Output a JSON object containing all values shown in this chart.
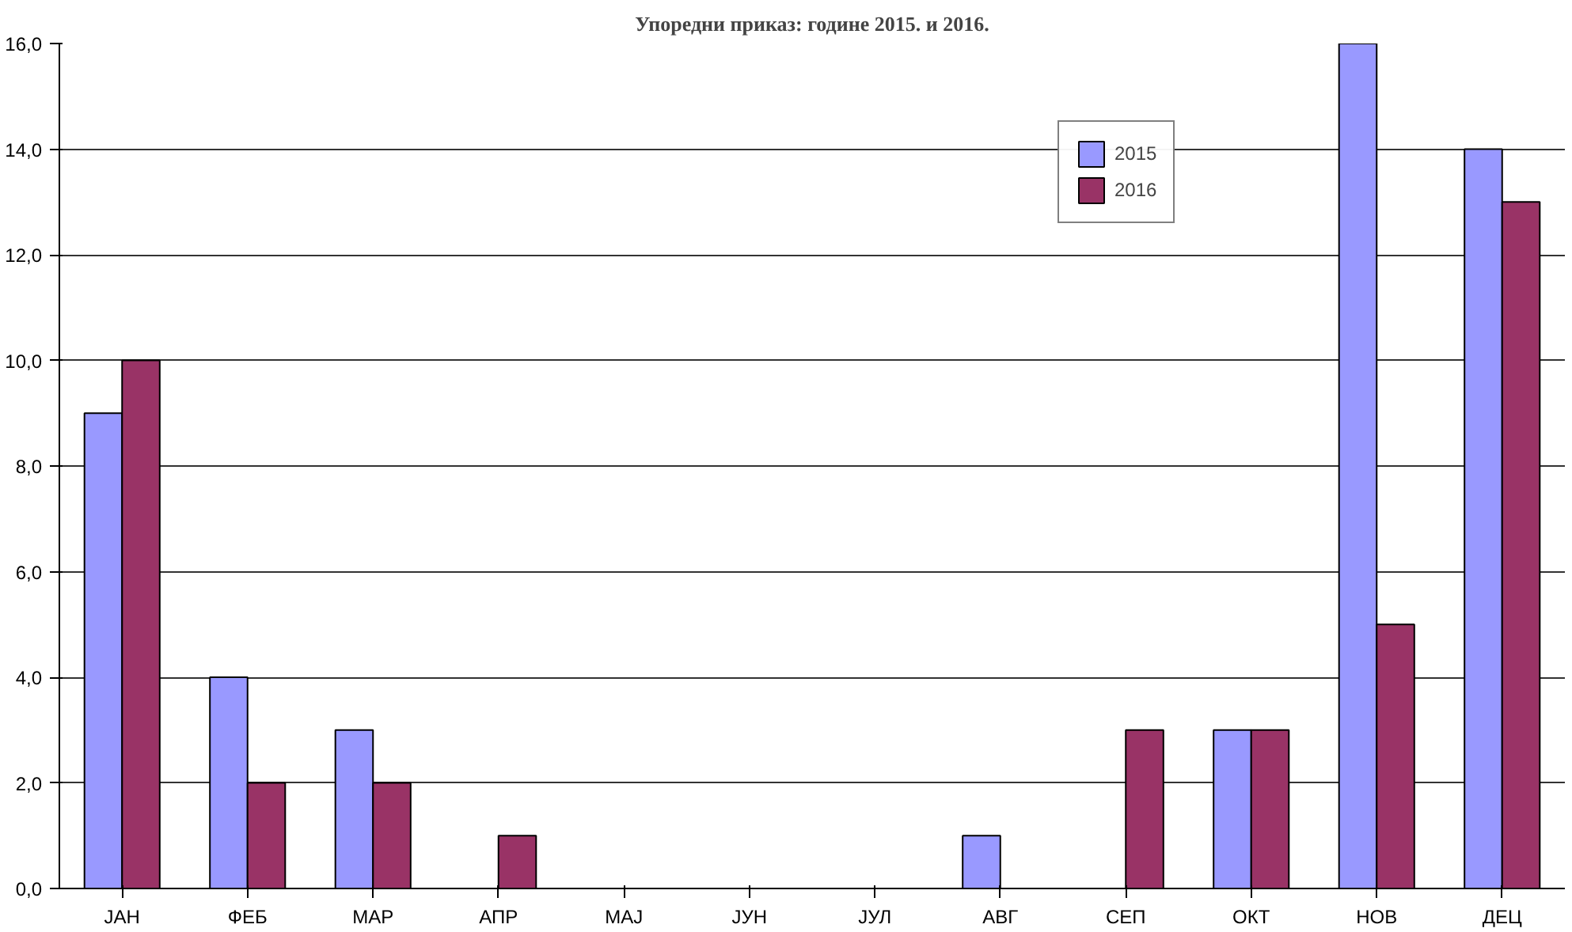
{
  "chart_data": {
    "type": "bar",
    "title": "Упоредни приказ: године 2015. и 2016.",
    "categories": [
      "ЈАН",
      "ФЕБ",
      "МАР",
      "АПР",
      "МАЈ",
      "ЈУН",
      "ЈУЛ",
      "АВГ",
      "СЕП",
      "ОКТ",
      "НОВ",
      "ДЕЦ"
    ],
    "series": [
      {
        "name": "2015",
        "color": "#9999ff",
        "values": [
          9,
          4,
          3,
          0,
          0,
          0,
          0,
          1,
          0,
          3,
          16,
          14
        ]
      },
      {
        "name": "2016",
        "color": "#993366",
        "values": [
          10,
          2,
          2,
          1,
          0,
          0,
          0,
          0,
          3,
          3,
          5,
          13
        ]
      }
    ],
    "ylim": [
      0,
      16
    ],
    "yticks": [
      {
        "value": 0,
        "label": "0,0"
      },
      {
        "value": 2,
        "label": "2,0"
      },
      {
        "value": 4,
        "label": "4,0"
      },
      {
        "value": 6,
        "label": "6,0"
      },
      {
        "value": 8,
        "label": "8,0"
      },
      {
        "value": 10,
        "label": "10,0"
      },
      {
        "value": 12,
        "label": "12,0"
      },
      {
        "value": 14,
        "label": "14,0"
      },
      {
        "value": 16,
        "label": "16,0"
      }
    ],
    "grid": "y",
    "legend": "top right"
  }
}
